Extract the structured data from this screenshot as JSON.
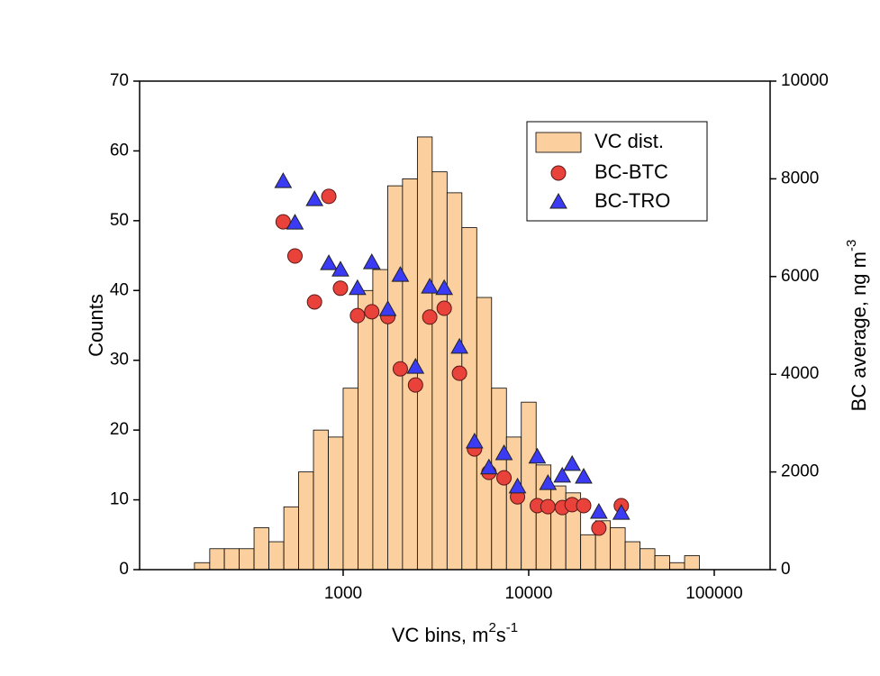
{
  "chart_data": {
    "type": "histogram",
    "xlabel": [
      "VC bins, m",
      "2",
      "s",
      "-1"
    ],
    "ylabel": "Counts",
    "y2label": [
      "BC average, ng m",
      "-3"
    ],
    "xscale": "log",
    "xlim": [
      80,
      200000
    ],
    "xticks": [
      1000,
      10000,
      100000
    ],
    "ylim": [
      0,
      70
    ],
    "yticks": [
      0,
      10,
      20,
      30,
      40,
      50,
      60,
      70
    ],
    "y2lim": [
      0,
      10000
    ],
    "y2ticks": [
      0,
      2000,
      4000,
      6000,
      8000,
      10000
    ],
    "legend": "upper right",
    "histogram": {
      "name": "VC dist.",
      "color": "#fbcf9e",
      "bins": [
        158,
        191,
        229,
        275,
        331,
        398,
        479,
        575,
        692,
        832,
        1000,
        1202,
        1445,
        1738,
        2089,
        2512,
        3020,
        3631,
        4365,
        5248,
        6310,
        7586,
        9120,
        10965,
        13183,
        15849,
        19055,
        22909,
        27542,
        33113,
        39811,
        47863,
        57544,
        69183,
        83176
      ],
      "values": [
        1,
        3,
        3,
        3,
        6,
        4,
        9,
        14,
        20,
        19,
        26,
        40,
        43,
        55,
        56,
        62,
        57,
        54,
        49,
        39,
        26,
        19,
        24,
        15,
        12,
        11,
        5,
        7,
        6,
        4,
        3,
        2,
        1,
        2
      ]
    },
    "x": [
      475,
      550,
      701,
      837,
      967,
      1195,
      1427,
      1741,
      2033,
      2455,
      2930,
      3505,
      4235,
      5105,
      6105,
      7360,
      8705,
      11120,
      12700,
      15170,
      17140,
      19780,
      23880,
      31550
    ],
    "series": [
      {
        "name": "BC-BTC",
        "color": "#e8423a",
        "marker": "circle",
        "axis": "y2",
        "values": [
          7120,
          6420,
          5480,
          7640,
          5760,
          5200,
          5280,
          5180,
          4110,
          3780,
          5170,
          5350,
          4020,
          2470,
          1990,
          1880,
          1490,
          1310,
          1290,
          1270,
          1330,
          1310,
          850,
          1310
        ]
      },
      {
        "name": "BC-TRO",
        "color": "#3b3bf5",
        "marker": "triangle",
        "axis": "y2",
        "values": [
          7950,
          7100,
          7580,
          6270,
          6140,
          5760,
          6290,
          5330,
          6030,
          4150,
          5790,
          5760,
          4560,
          2620,
          2090,
          2380,
          1700,
          2310,
          1770,
          1920,
          2160,
          1900,
          1180,
          1160
        ]
      }
    ]
  }
}
